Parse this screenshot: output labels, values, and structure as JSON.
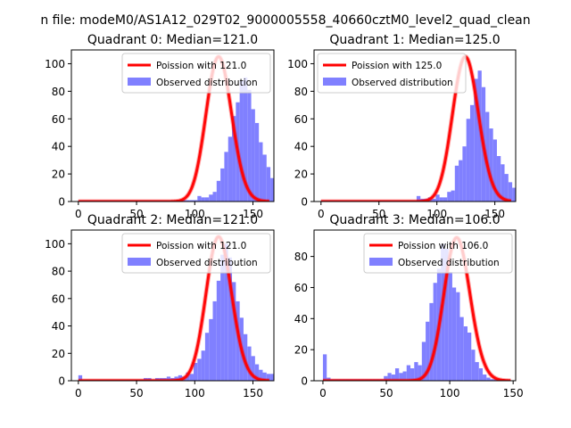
{
  "figure": {
    "suptitle": "n file: modeM0/AS1A12_029T02_9000005558_40660cztM0_level2_quad_clean"
  },
  "colors": {
    "poisson": "#ff0000",
    "observed": "#8080ff"
  },
  "chart_data": [
    {
      "type": "bar",
      "title": "Quadrant 0: Median=121.0",
      "xlim": [
        -6,
        168
      ],
      "ylim": [
        0,
        110
      ],
      "xticks": [
        0,
        50,
        100,
        150
      ],
      "yticks": [
        0,
        20,
        40,
        60,
        80,
        100
      ],
      "grid": false,
      "legend_position": "top-right",
      "legend": [
        "Poission with 121.0",
        "Observed distribution"
      ],
      "hist": {
        "bin_start": 0,
        "bin_width": 3.3,
        "counts": [
          1,
          1,
          1,
          1,
          1,
          1,
          1,
          1,
          1,
          1,
          1,
          1,
          1,
          1,
          1,
          1,
          1,
          1,
          1,
          1,
          1,
          1,
          1,
          1,
          1,
          1,
          1,
          1,
          1,
          1,
          1,
          4,
          3,
          3,
          5,
          7,
          15,
          24,
          36,
          47,
          62,
          72,
          88,
          90,
          81,
          67,
          57,
          43,
          34,
          25,
          17,
          9,
          7,
          6,
          5,
          7,
          1,
          1,
          1,
          1
        ]
      },
      "poisson_mean": 121.0,
      "poisson_amplitude": 105
    },
    {
      "type": "bar",
      "title": "Quadrant 1: Median=125.0",
      "xlim": [
        -6,
        168
      ],
      "ylim": [
        0,
        110
      ],
      "xticks": [
        0,
        50,
        100,
        150
      ],
      "yticks": [
        0,
        20,
        40,
        60,
        80,
        100
      ],
      "grid": false,
      "legend_position": "top-left",
      "legend": [
        "Poission with 125.0",
        "Observed distribution"
      ],
      "hist": {
        "bin_start": 0,
        "bin_width": 3.3,
        "counts": [
          1,
          1,
          1,
          1,
          1,
          1,
          1,
          1,
          1,
          1,
          1,
          1,
          1,
          1,
          1,
          1,
          1,
          1,
          1,
          1,
          1,
          1,
          1,
          1,
          1,
          4,
          2,
          2,
          3,
          2,
          5,
          3,
          3,
          7,
          8,
          26,
          30,
          40,
          60,
          70,
          89,
          95,
          83,
          65,
          53,
          45,
          33,
          27,
          20,
          14,
          10,
          7,
          4,
          5,
          7,
          6,
          1,
          1,
          1,
          1
        ]
      },
      "poisson_mean": 125.0,
      "poisson_amplitude": 105
    },
    {
      "type": "bar",
      "title": "Quadrant 2: Median=121.0",
      "xlim": [
        -6,
        168
      ],
      "ylim": [
        0,
        110
      ],
      "xticks": [
        0,
        50,
        100,
        150
      ],
      "yticks": [
        0,
        20,
        40,
        60,
        80,
        100
      ],
      "grid": false,
      "legend_position": "top-right",
      "legend": [
        "Poission with 121.0",
        "Observed distribution"
      ],
      "hist": {
        "bin_start": 0,
        "bin_width": 3.3,
        "counts": [
          4,
          1,
          1,
          1,
          1,
          1,
          1,
          1,
          1,
          1,
          1,
          1,
          1,
          1,
          1,
          1,
          1,
          2,
          2,
          1,
          2,
          2,
          2,
          3,
          2,
          3,
          4,
          3,
          6,
          5,
          13,
          16,
          22,
          35,
          45,
          58,
          73,
          92,
          100,
          90,
          72,
          58,
          46,
          34,
          25,
          18,
          12,
          8,
          6,
          5,
          5,
          2,
          1,
          1,
          1,
          1,
          1,
          1,
          1,
          1
        ]
      },
      "poisson_mean": 121.0,
      "poisson_amplitude": 105
    },
    {
      "type": "bar",
      "title": "Quadrant 3: Median=106.0",
      "xlim": [
        -7,
        152
      ],
      "ylim": [
        0,
        97
      ],
      "xticks": [
        0,
        50,
        100,
        150
      ],
      "yticks": [
        0,
        20,
        40,
        60,
        80
      ],
      "grid": false,
      "legend_position": "top-right",
      "legend": [
        "Poission with 106.0",
        "Observed distribution"
      ],
      "hist": {
        "bin_start": 0,
        "bin_width": 3.0,
        "counts": [
          17,
          2,
          1,
          1,
          1,
          1,
          1,
          1,
          1,
          1,
          1,
          1,
          1,
          1,
          1,
          1,
          3,
          5,
          4,
          8,
          5,
          6,
          10,
          8,
          12,
          10,
          25,
          38,
          50,
          63,
          72,
          88,
          85,
          70,
          60,
          57,
          41,
          35,
          31,
          20,
          12,
          8,
          4,
          2,
          1,
          1,
          1,
          1
        ]
      },
      "poisson_mean": 106.0,
      "poisson_amplitude": 92
    }
  ]
}
